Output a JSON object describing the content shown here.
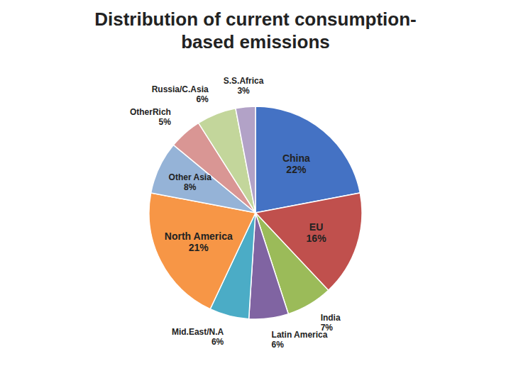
{
  "chart_data": {
    "type": "pie",
    "title": "Distribution of current consumption-\nbased emissions",
    "categories": [
      "China",
      "EU",
      "India",
      "Latin America",
      "Mid.East/N.A",
      "North America",
      "Other Asia",
      "OtherRich",
      "Russia/C.Asia",
      "S.S.Africa"
    ],
    "values": [
      22,
      16,
      7,
      6,
      6,
      21,
      8,
      5,
      6,
      3
    ],
    "value_labels": [
      "22%",
      "16%",
      "7%",
      "6%",
      "6%",
      "21%",
      "8%",
      "5%",
      "6%",
      "3%"
    ],
    "colors": [
      "#4472C4",
      "#C0504D",
      "#9BBB59",
      "#8064A2",
      "#4BACC6",
      "#F79646",
      "#95B3D7",
      "#D99694",
      "#C3D69B",
      "#B2A2C7"
    ],
    "data_labels": true
  }
}
